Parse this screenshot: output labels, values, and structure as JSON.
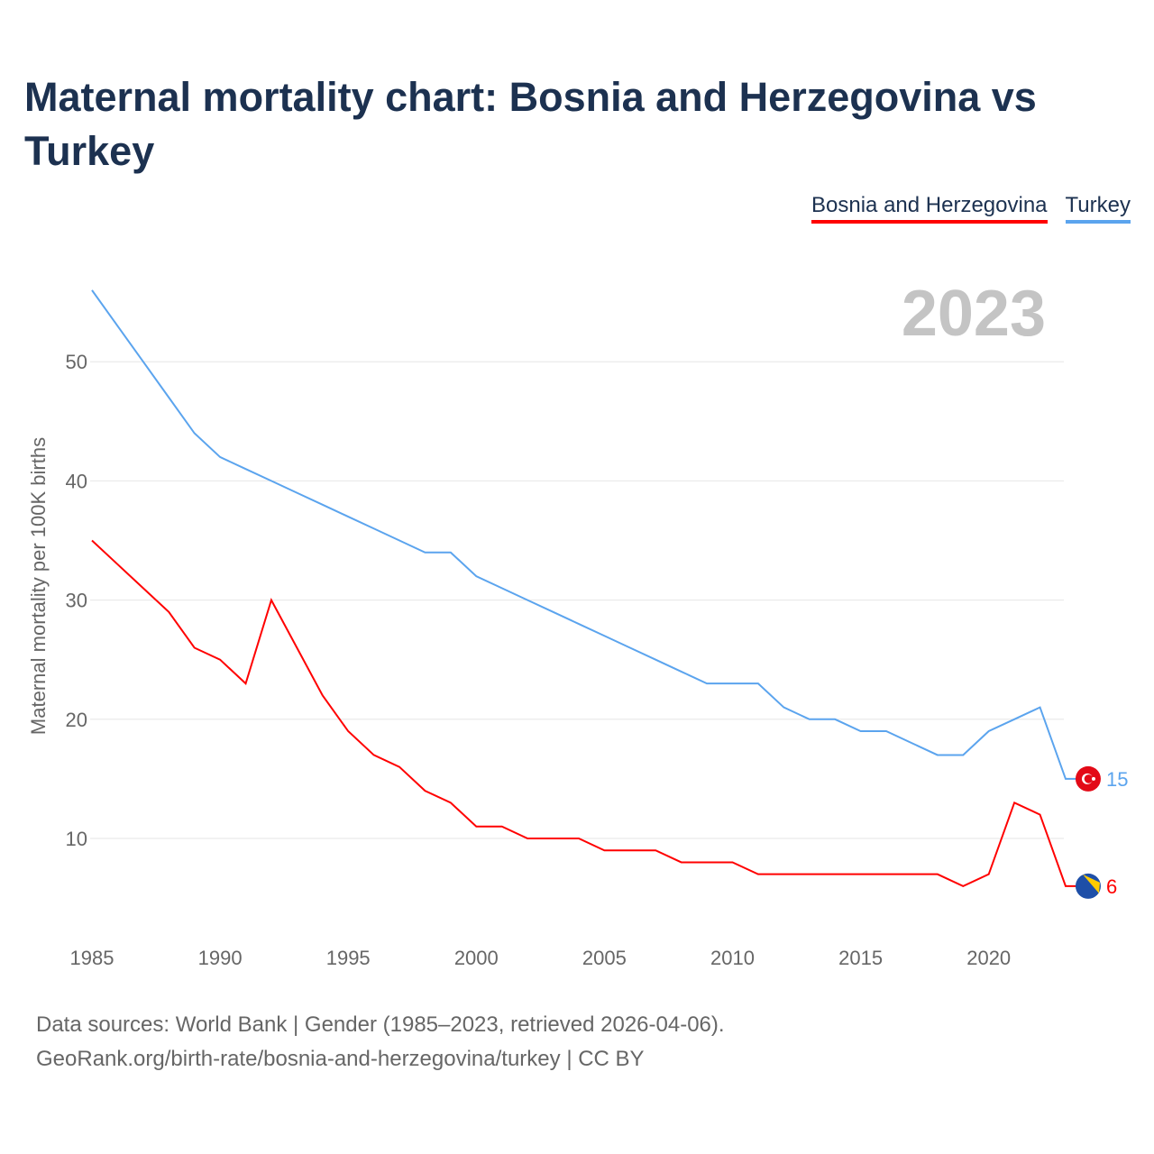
{
  "title": "Maternal mortality chart: Bosnia and Herzegovina vs Turkey",
  "source_line1": "Data sources: World Bank | Gender (1985–2023, retrieved 2026-04-06).",
  "source_line2": "GeoRank.org/birth-rate/bosnia-and-herzegovina/turkey | CC BY",
  "chart_data": {
    "type": "line",
    "title": "Maternal mortality chart: Bosnia and Herzegovina vs Turkey",
    "year_label": "2023",
    "ylabel": "Maternal mortality per 100K births",
    "xlabel": "",
    "xlim": [
      1985,
      2023
    ],
    "ylim": [
      3,
      58
    ],
    "xticks": [
      1985,
      1990,
      1995,
      2000,
      2005,
      2010,
      2015,
      2020
    ],
    "yticks": [
      10,
      20,
      30,
      40,
      50
    ],
    "grid": true,
    "legend_placement": "top-right",
    "x": [
      1985,
      1986,
      1987,
      1988,
      1989,
      1990,
      1991,
      1992,
      1993,
      1994,
      1995,
      1996,
      1997,
      1998,
      1999,
      2000,
      2001,
      2002,
      2003,
      2004,
      2005,
      2006,
      2007,
      2008,
      2009,
      2010,
      2011,
      2012,
      2013,
      2014,
      2015,
      2016,
      2017,
      2018,
      2019,
      2020,
      2021,
      2022,
      2023
    ],
    "series": [
      {
        "name": "Bosnia and Herzegovina",
        "color": "#ff0000",
        "end_label": "6",
        "values": [
          35,
          33,
          31,
          29,
          26,
          25,
          23,
          30,
          26,
          22,
          19,
          17,
          16,
          14,
          13,
          11,
          11,
          10,
          10,
          10,
          9,
          9,
          9,
          8,
          8,
          8,
          7,
          7,
          7,
          7,
          7,
          7,
          7,
          7,
          6,
          7,
          13,
          12,
          6
        ]
      },
      {
        "name": "Turkey",
        "color": "#5ba4ee",
        "end_label": "15",
        "values": [
          56,
          53,
          50,
          47,
          44,
          42,
          41,
          40,
          39,
          38,
          37,
          36,
          35,
          34,
          34,
          32,
          31,
          30,
          29,
          28,
          27,
          26,
          25,
          24,
          23,
          23,
          23,
          21,
          20,
          20,
          19,
          19,
          18,
          17,
          17,
          19,
          20,
          21,
          15
        ]
      }
    ]
  }
}
